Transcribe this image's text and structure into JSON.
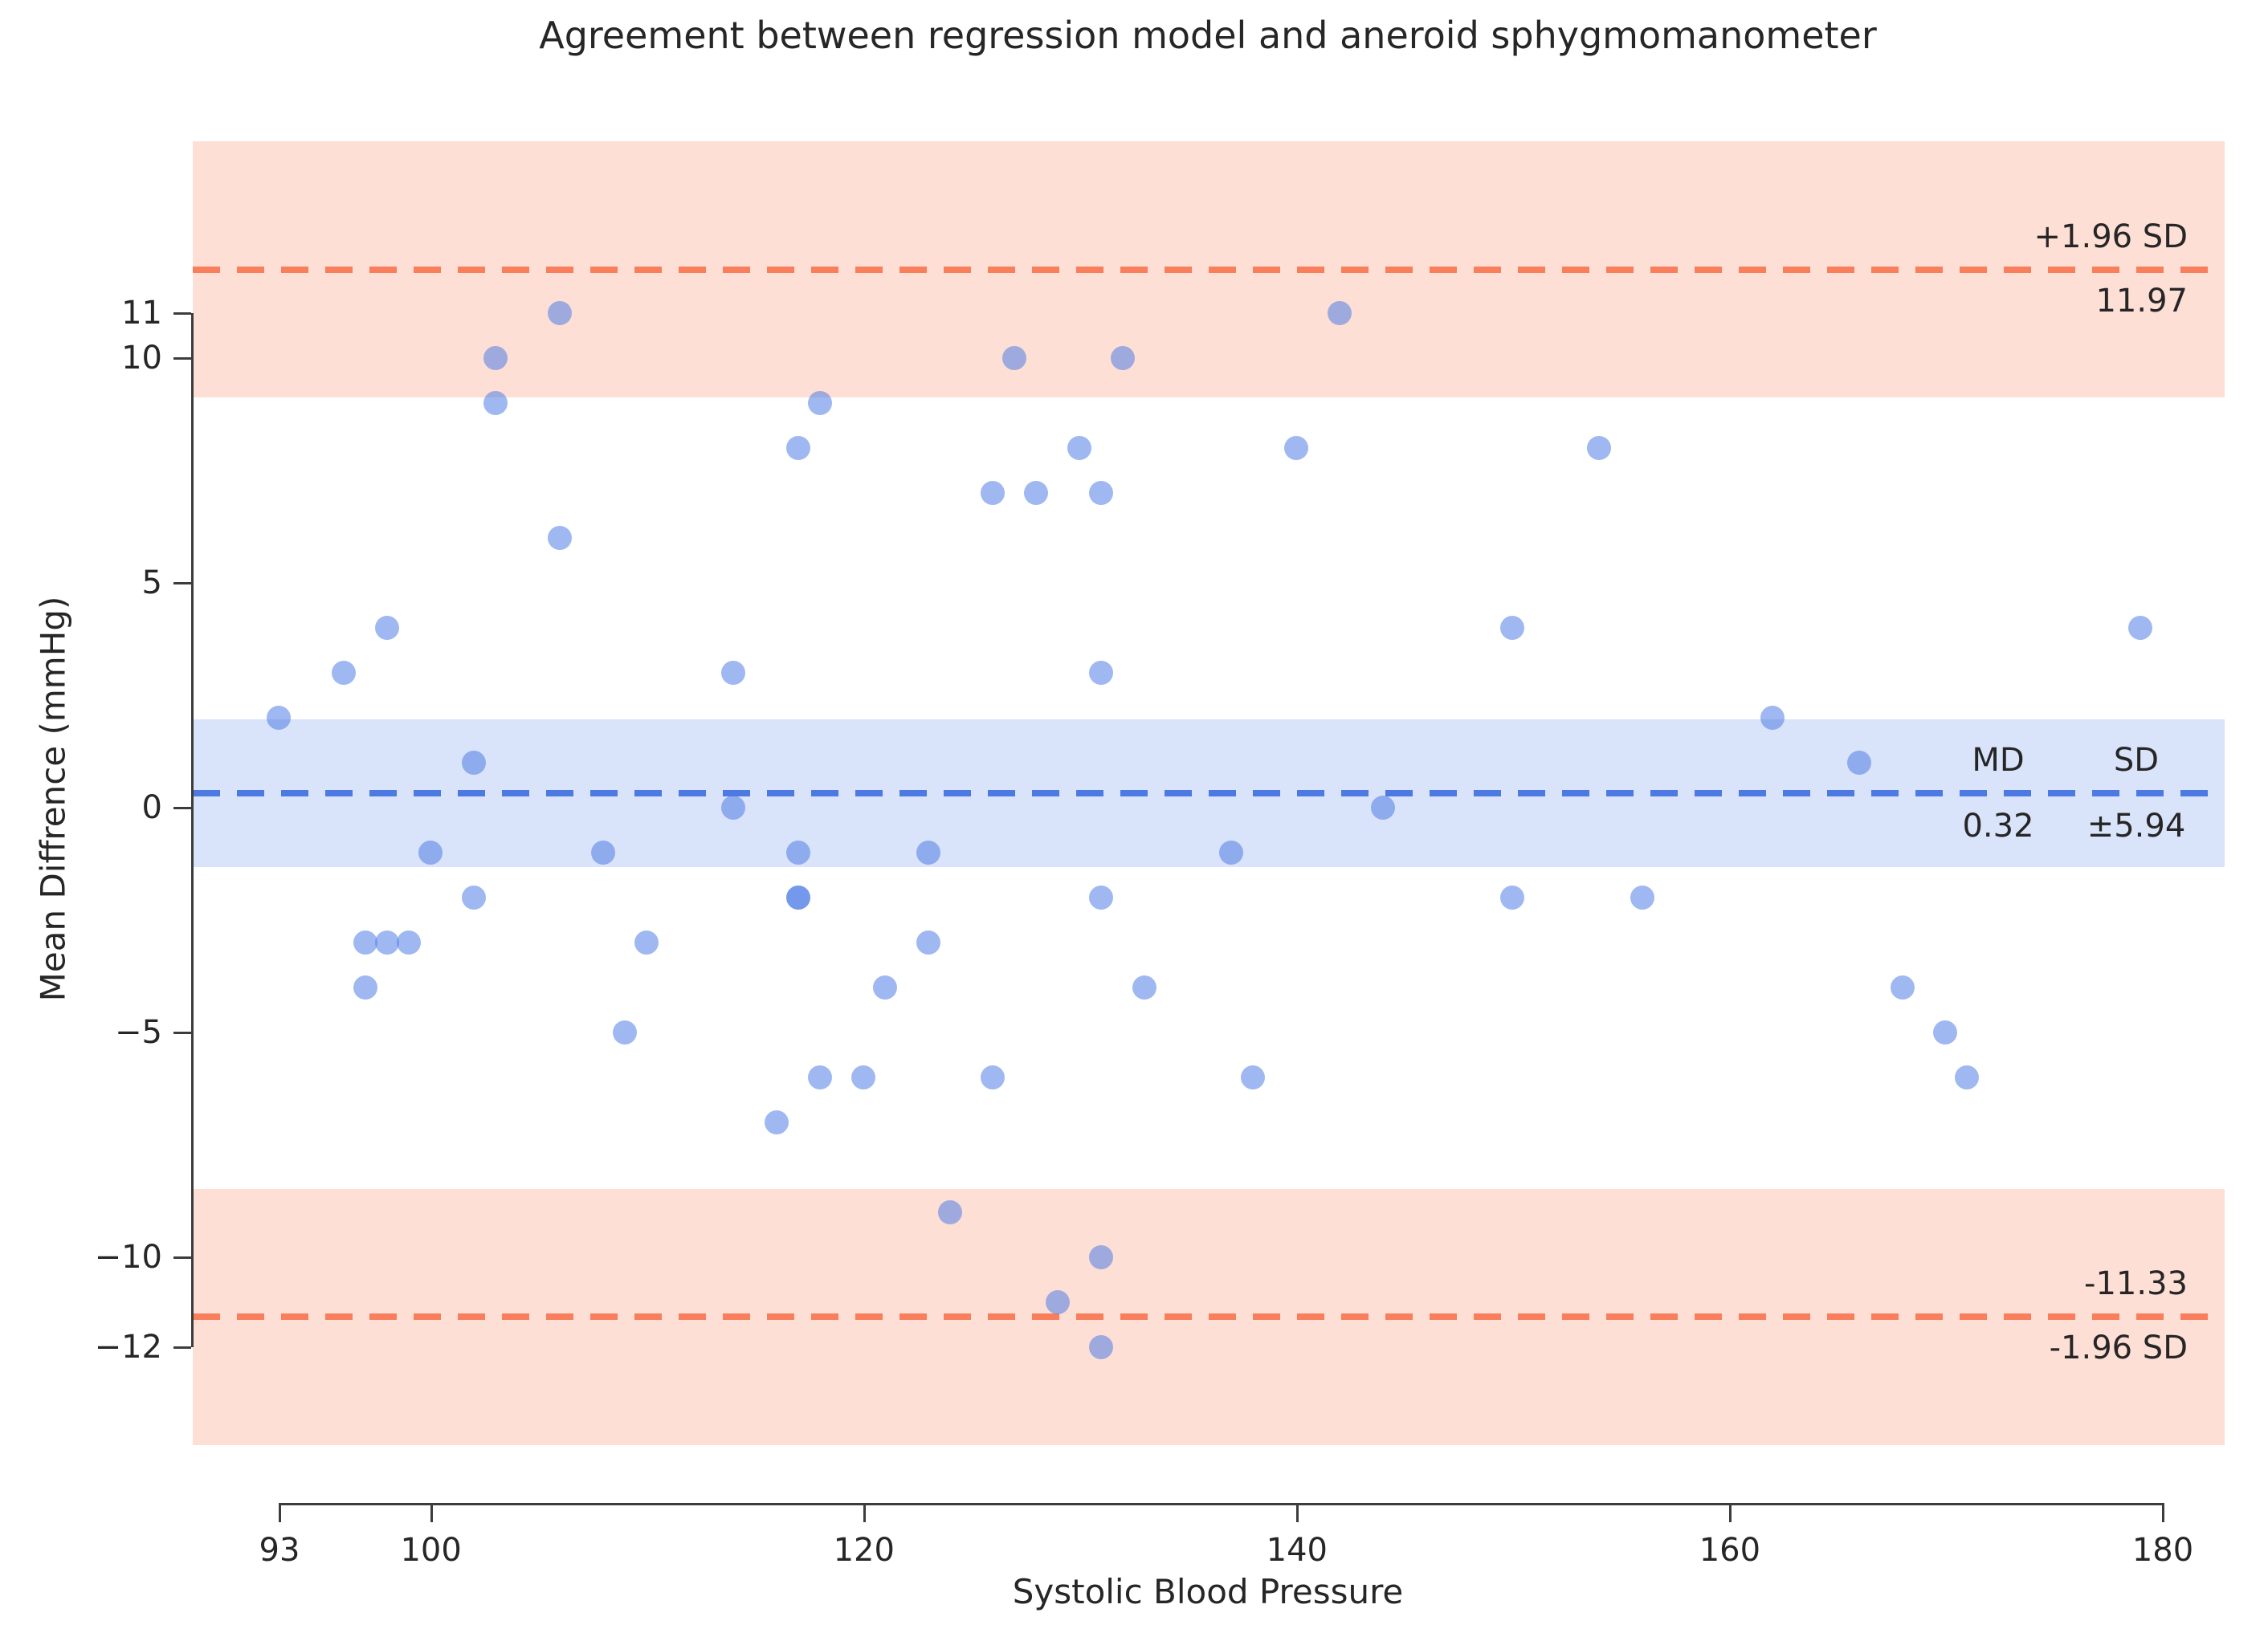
{
  "figure": {
    "title": "Agreement between regression model and aneroid sphygmomanometer",
    "x_label": "Systolic Blood Pressure",
    "y_label": "Mean Diffrence (mmHg)"
  },
  "annotations": {
    "upper_loa_label": "+1.96 SD",
    "upper_loa_value": "11.97",
    "md_label": "MD",
    "sd_label": "SD",
    "md_value": "0.32",
    "sd_value": "±5.94",
    "lower_loa_value": "-11.33",
    "lower_loa_label": "-1.96 SD"
  },
  "colors": {
    "scatter": "#6495ED",
    "mean_line": "#4d79e3",
    "loa_line": "#f87e5c",
    "loa_band": "#fbddd3",
    "mean_band": "#d9e2f7",
    "text": "#262626",
    "spine": "#3c3c3c",
    "background": "#ffffff"
  },
  "chart_data": {
    "type": "scatter",
    "title": "Agreement between regression model and aneroid sphygmomanometer",
    "xlabel": "Systolic Blood Pressure",
    "ylabel": "Mean Diffrence (mmHg)",
    "x_ticks": [
      93,
      100,
      120,
      140,
      160,
      180
    ],
    "y_ticks": [
      11,
      10,
      5,
      0,
      -5,
      -10,
      -12
    ],
    "xlim": [
      89,
      185
    ],
    "ylim": [
      -15.5,
      16.2
    ],
    "grid": false,
    "legend": false,
    "mean_diff": 0.32,
    "sd": 5.94,
    "upper_loa": 11.97,
    "lower_loa": -11.33,
    "loa_ci_half_width": 2.85,
    "md_ci_half_width": 1.64,
    "points": [
      [
        106,
        11
      ],
      [
        142,
        11
      ],
      [
        103,
        10
      ],
      [
        127,
        10
      ],
      [
        132,
        10
      ],
      [
        103,
        9
      ],
      [
        118,
        9
      ],
      [
        117,
        8
      ],
      [
        130,
        8
      ],
      [
        140,
        8
      ],
      [
        154,
        8
      ],
      [
        126,
        7
      ],
      [
        128,
        7
      ],
      [
        131,
        7
      ],
      [
        106,
        6
      ],
      [
        98,
        4
      ],
      [
        150,
        4
      ],
      [
        179,
        4
      ],
      [
        96,
        3
      ],
      [
        114,
        3
      ],
      [
        131,
        3
      ],
      [
        93,
        2
      ],
      [
        162,
        2
      ],
      [
        102,
        1
      ],
      [
        166,
        1
      ],
      [
        114,
        0
      ],
      [
        144,
        0
      ],
      [
        100,
        -1
      ],
      [
        108,
        -1
      ],
      [
        117,
        -1
      ],
      [
        123,
        -1
      ],
      [
        137,
        -1
      ],
      [
        102,
        -2
      ],
      [
        117,
        -2
      ],
      [
        117,
        -2
      ],
      [
        131,
        -2
      ],
      [
        150,
        -2
      ],
      [
        156,
        -2
      ],
      [
        97,
        -3
      ],
      [
        98,
        -3
      ],
      [
        99,
        -3
      ],
      [
        110,
        -3
      ],
      [
        123,
        -3
      ],
      [
        97,
        -4
      ],
      [
        121,
        -4
      ],
      [
        133,
        -4
      ],
      [
        168,
        -4
      ],
      [
        109,
        -5
      ],
      [
        170,
        -5
      ],
      [
        118,
        -6
      ],
      [
        120,
        -6
      ],
      [
        126,
        -6
      ],
      [
        138,
        -6
      ],
      [
        171,
        -6
      ],
      [
        116,
        -7
      ],
      [
        124,
        -9
      ],
      [
        131,
        -10
      ],
      [
        129,
        -11
      ],
      [
        131,
        -12
      ]
    ]
  }
}
